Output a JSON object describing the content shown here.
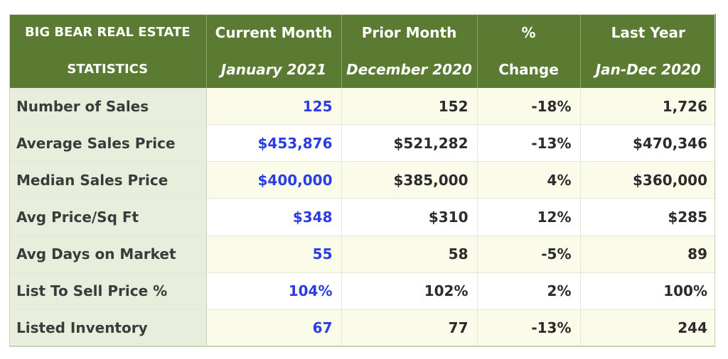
{
  "header": {
    "col0": [
      "BIG BEAR REAL ESTATE",
      "STATISTICS"
    ],
    "col1": [
      "Current Month",
      "January 2021"
    ],
    "col2": [
      "Prior Month",
      "December 2020"
    ],
    "col3": [
      "%",
      "Change"
    ],
    "col4": [
      "Last Year",
      "Jan-Dec 2020"
    ]
  },
  "rows": [
    {
      "label": "Number of Sales",
      "current": "125",
      "prior": "152",
      "change": "-18%",
      "last_year": "1,726"
    },
    {
      "label": "Average Sales Price",
      "current": "$453,876",
      "prior": "$521,282",
      "change": "-13%",
      "last_year": "$470,346"
    },
    {
      "label": "Median Sales Price",
      "current": "$400,000",
      "prior": "$385,000",
      "change": "4%",
      "last_year": "$360,000"
    },
    {
      "label": "Avg Price/Sq Ft",
      "current": "$348",
      "prior": "$310",
      "change": "12%",
      "last_year": "$285"
    },
    {
      "label": "Avg Days on Market",
      "current": "55",
      "prior": "58",
      "change": "-5%",
      "last_year": "89"
    },
    {
      "label": "List To Sell Price %",
      "current": "104%",
      "prior": "102%",
      "change": "2%",
      "last_year": "100%"
    },
    {
      "label": "Listed Inventory",
      "current": "67",
      "prior": "77",
      "change": "-13%",
      "last_year": "244"
    }
  ],
  "colors": {
    "header_bg": "#5b7a32",
    "label_bg": "#e7eedb",
    "current_text": "#2a3ce3",
    "odd_row_bg": "#fbfbe9"
  }
}
